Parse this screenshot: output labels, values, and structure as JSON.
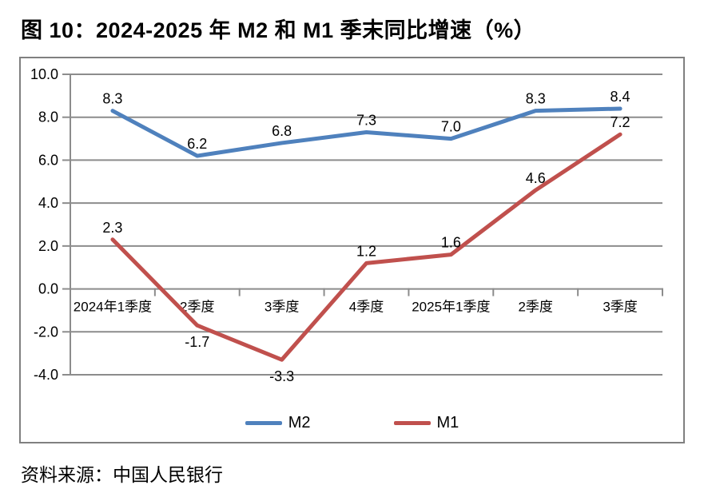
{
  "title": "图 10：2024-2025 年 M2 和 M1 季末同比增速（%）",
  "source": "资料来源：中国人民银行",
  "chart_data": {
    "type": "line",
    "categories": [
      "2024年1季度",
      "2季度",
      "3季度",
      "4季度",
      "2025年1季度",
      "2季度",
      "3季度"
    ],
    "series": [
      {
        "name": "M2",
        "color": "#4F81BD",
        "values": [
          8.3,
          6.2,
          6.8,
          7.3,
          7.0,
          8.3,
          8.4
        ]
      },
      {
        "name": "M1",
        "color": "#C0504D",
        "values": [
          2.3,
          -1.7,
          -3.3,
          1.2,
          1.6,
          4.6,
          7.2
        ]
      }
    ],
    "ylim": [
      -4.0,
      10.0
    ],
    "ytick_step": 2.0,
    "ytick_labels": [
      "10.0",
      "8.0",
      "6.0",
      "4.0",
      "2.0",
      "0.0",
      "-2.0",
      "-4.0"
    ],
    "grid": true,
    "legend_position": "bottom",
    "data_labels": true,
    "colors": {
      "gridline": "#8C8C8C",
      "axis": "#8C8C8C",
      "frame": "#808080",
      "label": "#000000"
    }
  }
}
